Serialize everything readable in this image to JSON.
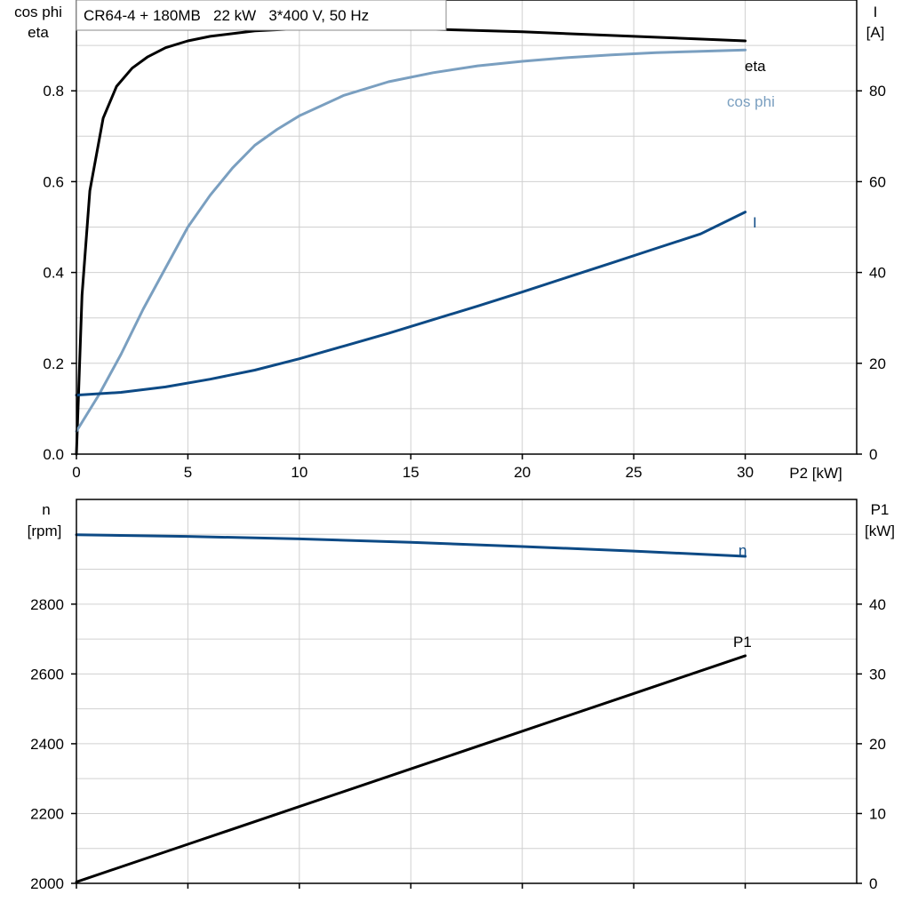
{
  "colors": {
    "eta": "#000000",
    "cos_phi": "#7a9fc0",
    "current": "#0d4a85",
    "speed": "#0d4a85",
    "p1": "#000000",
    "grid": "#d0d0d0"
  },
  "chart_data": [
    {
      "type": "line",
      "title": "CR64-4 + 180MB   22 kW   3*400 V, 50 Hz",
      "xlabel": "P2 [kW]",
      "ylabel_left_line1": "cos phi",
      "ylabel_left_line2": "eta",
      "ylabel_right_line1": "I",
      "ylabel_right_line2": "[A]",
      "xlim": [
        0,
        35
      ],
      "ylim_left": [
        0,
        1.0
      ],
      "ylim_right": [
        0,
        100
      ],
      "x_ticks": [
        0,
        5,
        10,
        15,
        20,
        25,
        30
      ],
      "y_ticks_left": [
        0.0,
        0.2,
        0.4,
        0.6,
        0.8
      ],
      "y_tick_labels_left": [
        "0.0",
        "0.2",
        "0.4",
        "0.6",
        "0.8"
      ],
      "y_ticks_right": [
        0,
        20,
        40,
        60,
        80
      ],
      "grid": true,
      "series": [
        {
          "name": "eta",
          "color_key": "eta",
          "axis": "left",
          "x": [
            0,
            0.25,
            0.6,
            1.2,
            1.8,
            2.5,
            3.2,
            4,
            5,
            6,
            8,
            10,
            12,
            15,
            20,
            25,
            30
          ],
          "y": [
            0.0,
            0.35,
            0.58,
            0.74,
            0.81,
            0.85,
            0.875,
            0.895,
            0.91,
            0.92,
            0.932,
            0.937,
            0.938,
            0.937,
            0.93,
            0.92,
            0.91
          ]
        },
        {
          "name": "cos phi",
          "color_key": "cos_phi",
          "axis": "left",
          "x": [
            0,
            1,
            2,
            3,
            4,
            5,
            6,
            7,
            8,
            9,
            10,
            12,
            14,
            16,
            18,
            20,
            22,
            24,
            26,
            28,
            30
          ],
          "y": [
            0.05,
            0.13,
            0.22,
            0.32,
            0.41,
            0.5,
            0.57,
            0.63,
            0.68,
            0.715,
            0.745,
            0.79,
            0.82,
            0.84,
            0.855,
            0.865,
            0.873,
            0.879,
            0.884,
            0.887,
            0.89
          ]
        },
        {
          "name": "I",
          "color_key": "current",
          "axis": "right",
          "x": [
            0,
            2,
            4,
            6,
            8,
            10,
            12,
            14,
            16,
            18,
            20,
            22,
            24,
            26,
            28,
            30
          ],
          "y": [
            13,
            13.6,
            14.8,
            16.5,
            18.5,
            21,
            23.8,
            26.6,
            29.6,
            32.6,
            35.7,
            38.9,
            42.1,
            45.3,
            48.5,
            53.3
          ]
        }
      ]
    },
    {
      "type": "line",
      "xlabel": "",
      "ylabel_left_line1": "n",
      "ylabel_left_line2": "[rpm]",
      "ylabel_right_line1": "P1",
      "ylabel_right_line2": "[kW]",
      "xlim": [
        0,
        35
      ],
      "ylim_left": [
        2000,
        3100
      ],
      "ylim_right": [
        0,
        55
      ],
      "x_ticks": [
        0,
        5,
        10,
        15,
        20,
        25,
        30
      ],
      "y_ticks_left": [
        2000,
        2200,
        2400,
        2600,
        2800
      ],
      "y_ticks_right": [
        0,
        10,
        20,
        30,
        40
      ],
      "grid": true,
      "series": [
        {
          "name": "n",
          "color_key": "speed",
          "axis": "left",
          "x": [
            0,
            5,
            10,
            15,
            20,
            25,
            30
          ],
          "y": [
            2999,
            2994,
            2987,
            2977,
            2965,
            2952,
            2937
          ]
        },
        {
          "name": "P1",
          "color_key": "p1",
          "axis": "right",
          "x": [
            0,
            5,
            10,
            15,
            20,
            25,
            30
          ],
          "y": [
            0.2,
            5.6,
            11.0,
            16.4,
            21.8,
            27.2,
            32.6
          ]
        }
      ]
    }
  ]
}
